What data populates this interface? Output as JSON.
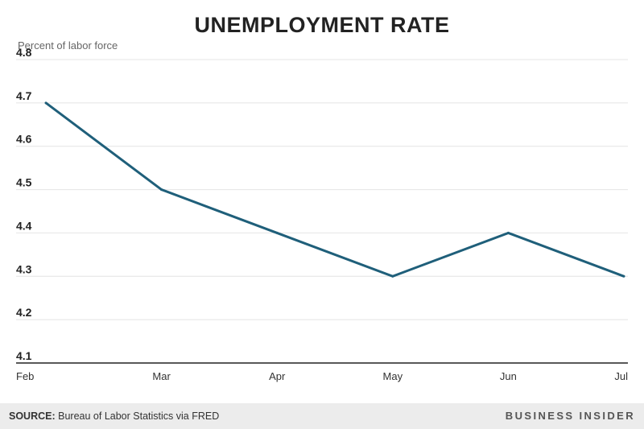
{
  "chart_data": {
    "type": "line",
    "title": "UNEMPLOYMENT RATE",
    "ylabel": "Percent of labor force",
    "xlabel": "",
    "categories": [
      "Feb",
      "Mar",
      "Apr",
      "May",
      "Jun",
      "Jul"
    ],
    "series": [
      {
        "name": "Unemployment rate",
        "values": [
          4.7,
          4.5,
          4.4,
          4.3,
          4.4,
          4.3
        ],
        "color": "#1f5f7a"
      }
    ],
    "ylim": [
      4.1,
      4.8
    ],
    "yticks": [
      "4.8",
      "4.7",
      "4.6",
      "4.5",
      "4.4",
      "4.3",
      "4.2",
      "4.1"
    ],
    "grid": true
  },
  "footer": {
    "source_label": "SOURCE:",
    "source_text": "Bureau of Labor Statistics via FRED",
    "brand": "BUSINESS INSIDER"
  },
  "colors": {
    "line": "#1f5f7a",
    "grid": "#e4e4e4",
    "footer_bg": "#ececec"
  }
}
